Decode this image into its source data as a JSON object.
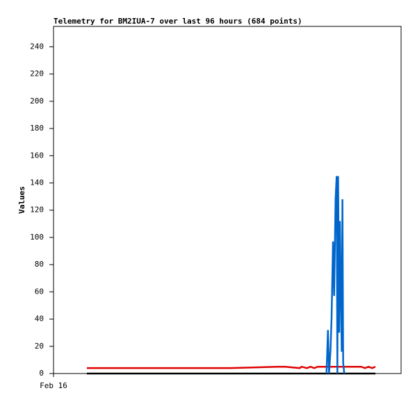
{
  "chart_data": {
    "type": "line",
    "title": "Telemetry for BM2IUA-7 over last 96 hours (684 points)",
    "y_label": "Values",
    "xlim": [
      0,
      96
    ],
    "xticks": [
      {
        "value": 0,
        "label": "Feb 16"
      }
    ],
    "ylim": [
      0,
      255
    ],
    "yticks": [
      0,
      20,
      40,
      60,
      80,
      100,
      120,
      140,
      160,
      180,
      200,
      220,
      240
    ],
    "grid": false,
    "series": [
      {
        "color": "#000000",
        "x": [
          9.2,
          88.9
        ],
        "values": [
          0,
          0
        ]
      },
      {
        "color": "#e00000",
        "x": [
          9.2,
          48,
          49,
          62,
          64,
          68,
          68.5,
          70,
          71,
          72,
          73,
          74,
          75,
          85,
          86,
          87,
          88,
          88.9
        ],
        "values": [
          4,
          4,
          4,
          5,
          5,
          4,
          5,
          4,
          5,
          4,
          5,
          5,
          5,
          5,
          4,
          5,
          4,
          5
        ]
      },
      {
        "color": "#0066cc",
        "x": [
          75.4,
          75.8,
          76.1,
          76.5,
          76.8,
          77.2,
          77.5,
          77.9,
          78.2,
          78.4,
          78.6,
          78.9,
          79.1,
          79.3,
          79.6,
          79.8,
          80.0,
          80.3
        ],
        "values": [
          0,
          32,
          0,
          17,
          41,
          97,
          57,
          128,
          145,
          0,
          145,
          30,
          112,
          73,
          16,
          128,
          8,
          0
        ]
      }
    ]
  }
}
